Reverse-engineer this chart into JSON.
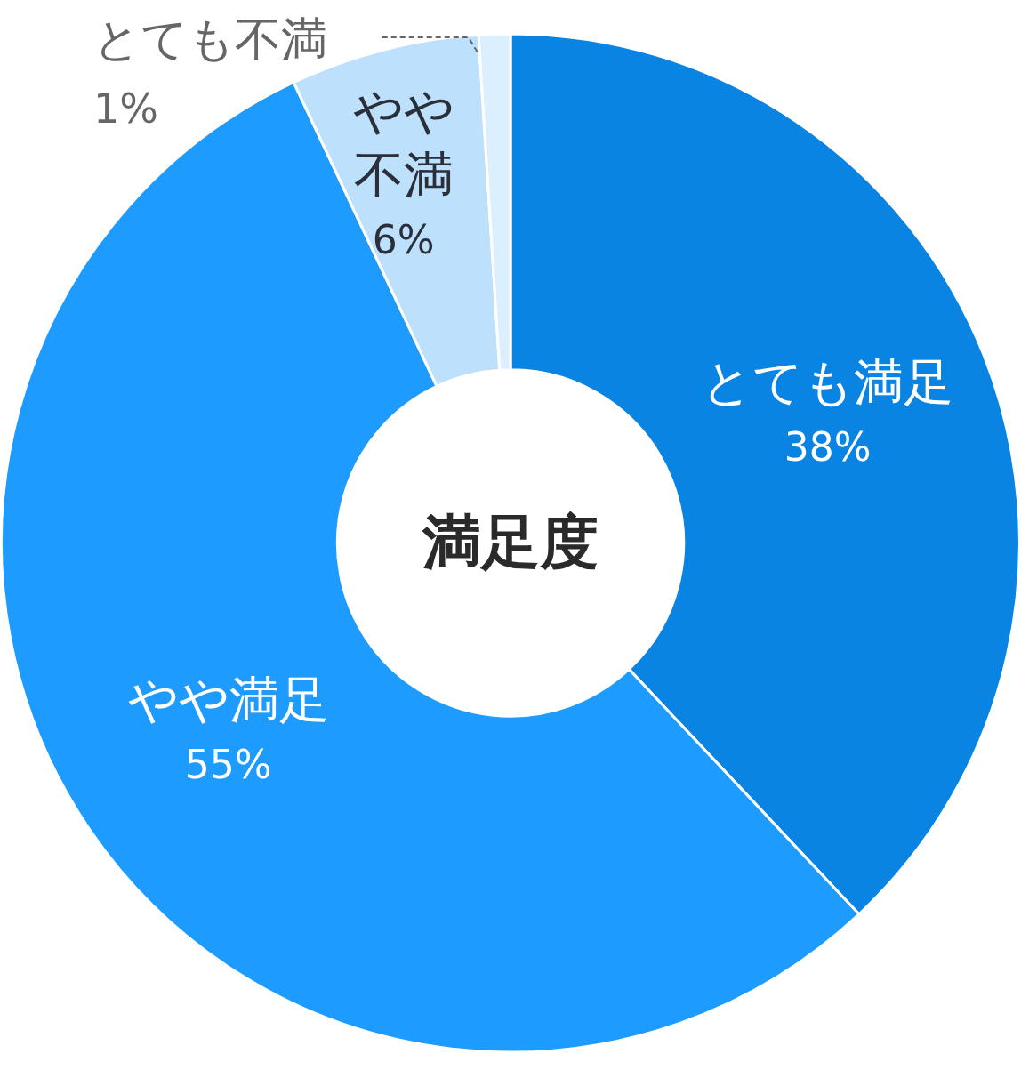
{
  "chart_data": {
    "type": "donut",
    "title": "満足度",
    "categories": [
      "とても満足",
      "やや満足",
      "やや不満",
      "とても不満"
    ],
    "values": [
      38,
      55,
      6,
      1
    ],
    "colors": [
      "#0a84e3",
      "#1e9bff",
      "#bde0fd",
      "#dcefff"
    ],
    "value_labels": [
      "38%",
      "55%",
      "6%",
      "1%"
    ],
    "legend": false
  }
}
